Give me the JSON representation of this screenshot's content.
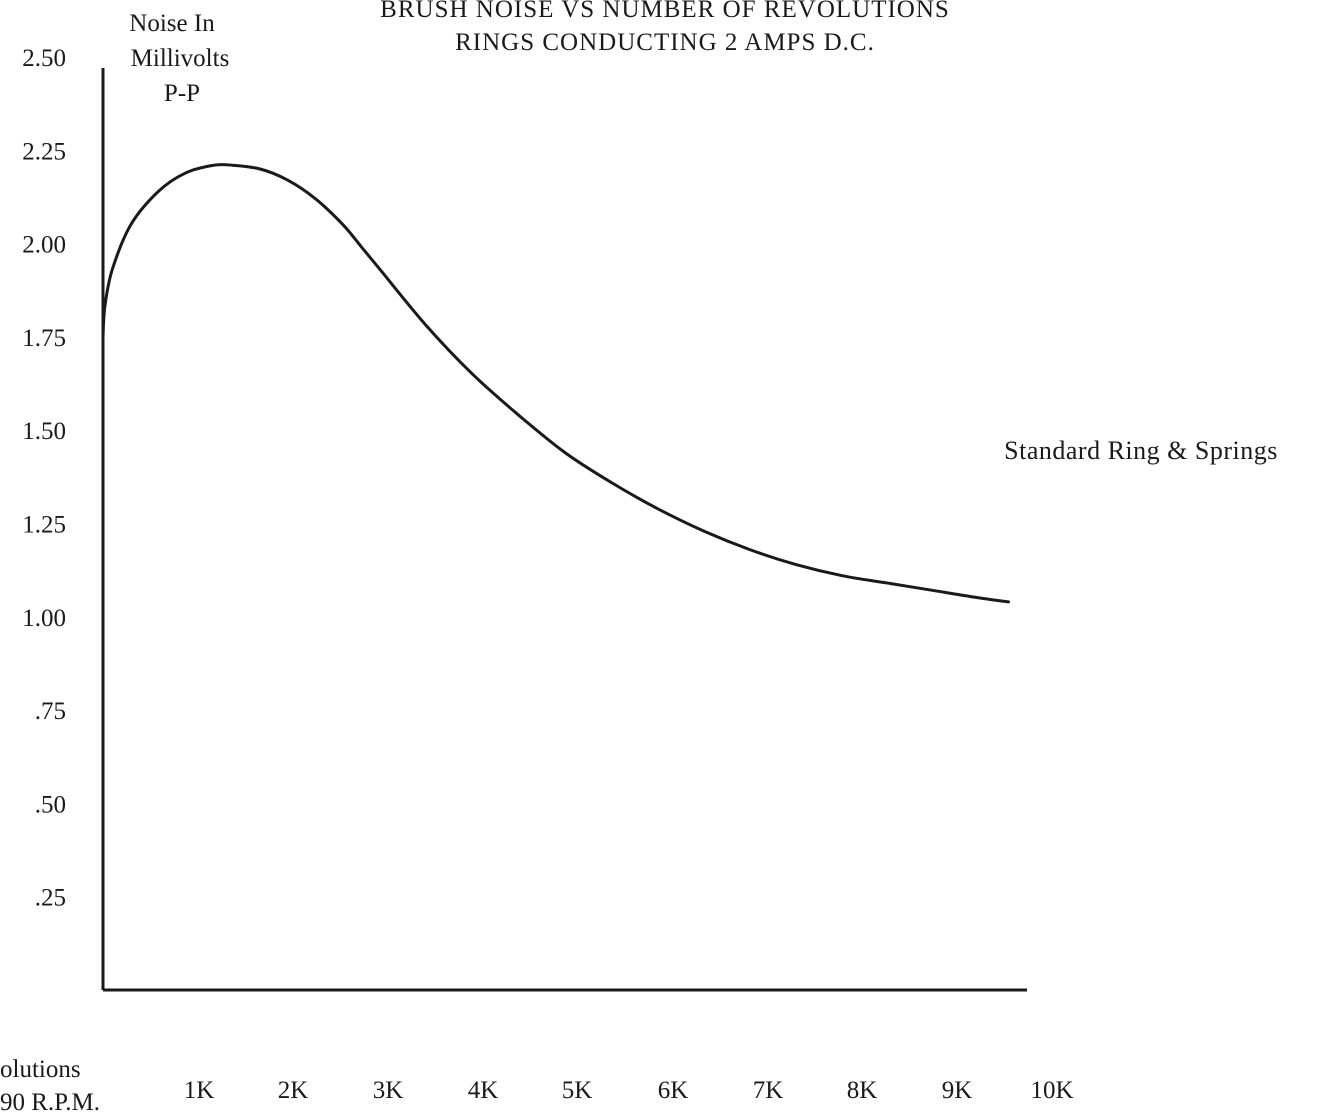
{
  "chart_data": {
    "type": "line",
    "title": "BRUSH NOISE VS NUMBER OF REVOLUTIONS",
    "subtitle": "RINGS CONDUCTING 2 AMPS D.C.",
    "ylabel": [
      "Noise In",
      "Millivolts",
      "P-P"
    ],
    "xlabel": [
      "olutions",
      "90 R.P.M."
    ],
    "ylim": [
      0,
      2.5
    ],
    "xlim": [
      0,
      10000
    ],
    "x_tick_labels": [
      "1K",
      "2K",
      "3K",
      "4K",
      "5K",
      "6K",
      "7K",
      "8K",
      "9K",
      "10K"
    ],
    "y_tick_labels": [
      ".25",
      ".50",
      ".75",
      "1.00",
      "1.25",
      "1.50",
      "1.75",
      "2.00",
      "2.25",
      "2.50"
    ],
    "grid": false,
    "series": [
      {
        "name": "Standard Ring & Springs",
        "x": [
          0,
          20,
          100,
          300,
          600,
          900,
          1200,
          1400,
          1700,
          2000,
          2300,
          2600,
          2800,
          3000,
          3500,
          4000,
          4500,
          5000,
          5500,
          6000,
          6500,
          7000,
          7500,
          8000,
          8500,
          9000,
          9500,
          9800
        ],
        "y": [
          1.75,
          1.83,
          1.93,
          2.05,
          2.14,
          2.19,
          2.21,
          2.21,
          2.2,
          2.17,
          2.12,
          2.05,
          1.99,
          1.93,
          1.78,
          1.65,
          1.54,
          1.44,
          1.36,
          1.29,
          1.23,
          1.18,
          1.14,
          1.11,
          1.09,
          1.07,
          1.05,
          1.04
        ]
      }
    ]
  }
}
